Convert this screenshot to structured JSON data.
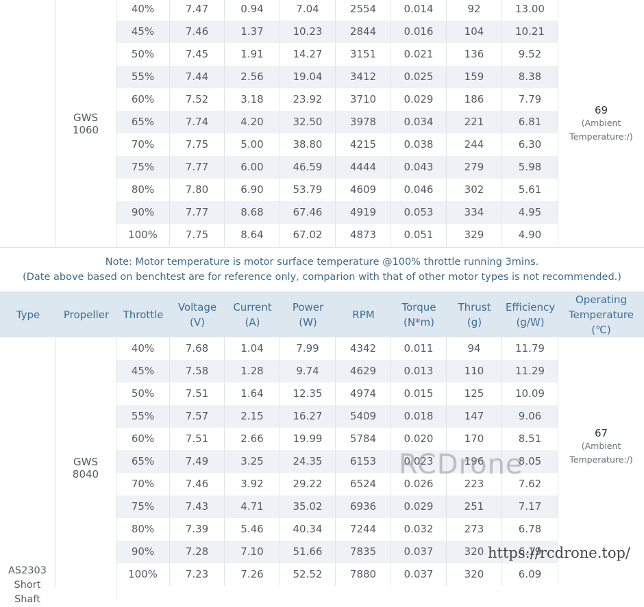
{
  "table1": {
    "propeller": "GWS\n1060",
    "propeller_line1": "GWS",
    "propeller_line2": "1060",
    "temperature": "69",
    "temperature_note_1": "(Ambient",
    "temperature_note_2": "Temperature:/)",
    "rows": [
      [
        "40%",
        "7.47",
        "0.94",
        "7.04",
        "2554",
        "0.014",
        "92",
        "13.00"
      ],
      [
        "45%",
        "7.46",
        "1.37",
        "10.23",
        "2844",
        "0.016",
        "104",
        "10.21"
      ],
      [
        "50%",
        "7.45",
        "1.91",
        "14.27",
        "3151",
        "0.021",
        "136",
        "9.52"
      ],
      [
        "55%",
        "7.44",
        "2.56",
        "19.04",
        "3412",
        "0.025",
        "159",
        "8.38"
      ],
      [
        "60%",
        "7.52",
        "3.18",
        "23.92",
        "3710",
        "0.029",
        "186",
        "7.79"
      ],
      [
        "65%",
        "7.74",
        "4.20",
        "32.50",
        "3978",
        "0.034",
        "221",
        "6.81"
      ],
      [
        "70%",
        "7.75",
        "5.00",
        "38.80",
        "4215",
        "0.038",
        "244",
        "6.30"
      ],
      [
        "75%",
        "7.77",
        "6.00",
        "46.59",
        "4444",
        "0.043",
        "279",
        "5.98"
      ],
      [
        "80%",
        "7.80",
        "6.90",
        "53.79",
        "4609",
        "0.046",
        "302",
        "5.61"
      ],
      [
        "90%",
        "7.77",
        "8.68",
        "67.46",
        "4919",
        "0.053",
        "334",
        "4.95"
      ],
      [
        "100%",
        "7.75",
        "8.64",
        "67.02",
        "4873",
        "0.051",
        "329",
        "4.90"
      ]
    ]
  },
  "note": {
    "line1": "Note: Motor temperature is motor surface temperature @100% throttle running 3mins.",
    "line2": "(Date above based on benchtest are for reference only, comparion with that of other motor types is not recommended.)"
  },
  "header": {
    "type": "Type",
    "propeller": "Propeller",
    "throttle": "Throttle",
    "voltage_1": "Voltage",
    "voltage_2": "(V)",
    "current_1": "Current",
    "current_2": "(A)",
    "power_1": "Power",
    "power_2": "(W)",
    "rpm": "RPM",
    "torque_1": "Torque",
    "torque_2": "(N*m)",
    "thrust_1": "Thrust",
    "thrust_2": "(g)",
    "efficiency_1": "Efficiency",
    "efficiency_2": "(g/W)",
    "optemp_1": "Operating",
    "optemp_2": "Temperature",
    "optemp_3": "(℃)"
  },
  "table2": {
    "type_line1": "AS2303",
    "type_line2": "Short Shaft",
    "propeller_line1": "GWS",
    "propeller_line2": "8040",
    "temperature": "67",
    "temperature_note_1": "(Ambient",
    "temperature_note_2": "Temperature:/)",
    "rows": [
      [
        "40%",
        "7.68",
        "1.04",
        "7.99",
        "4342",
        "0.011",
        "94",
        "11.79"
      ],
      [
        "45%",
        "7.58",
        "1.28",
        "9.74",
        "4629",
        "0.013",
        "110",
        "11.29"
      ],
      [
        "50%",
        "7.51",
        "1.64",
        "12.35",
        "4974",
        "0.015",
        "125",
        "10.09"
      ],
      [
        "55%",
        "7.57",
        "2.15",
        "16.27",
        "5409",
        "0.018",
        "147",
        "9.06"
      ],
      [
        "60%",
        "7.51",
        "2.66",
        "19.99",
        "5784",
        "0.020",
        "170",
        "8.51"
      ],
      [
        "65%",
        "7.49",
        "3.25",
        "24.35",
        "6153",
        "0.023",
        "196",
        "8.05"
      ],
      [
        "70%",
        "7.46",
        "3.92",
        "29.22",
        "6524",
        "0.026",
        "223",
        "7.62"
      ],
      [
        "75%",
        "7.43",
        "4.71",
        "35.02",
        "6936",
        "0.029",
        "251",
        "7.17"
      ],
      [
        "80%",
        "7.39",
        "5.46",
        "40.34",
        "7244",
        "0.032",
        "273",
        "6.78"
      ],
      [
        "90%",
        "7.28",
        "7.10",
        "51.66",
        "7835",
        "0.037",
        "320",
        "6.19"
      ],
      [
        "100%",
        "7.23",
        "7.26",
        "52.52",
        "7880",
        "0.037",
        "320",
        "6.09"
      ]
    ]
  },
  "watermark": "RCDrone",
  "url": "https://rcdrone.top/"
}
